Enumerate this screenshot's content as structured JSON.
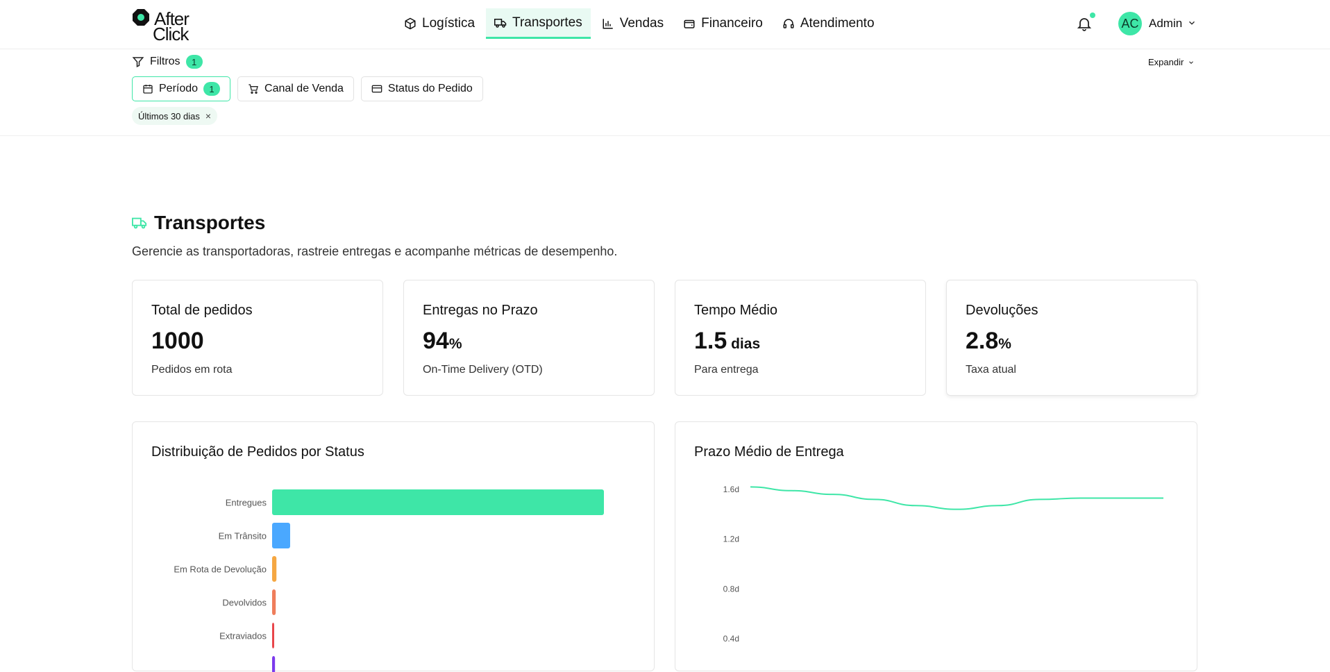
{
  "brand": {
    "line1": "After",
    "line2": "Click"
  },
  "nav": {
    "items": [
      {
        "label": "Logística",
        "icon": "package-icon",
        "active": false
      },
      {
        "label": "Transportes",
        "icon": "truck-icon",
        "active": true
      },
      {
        "label": "Vendas",
        "icon": "bar-chart-icon",
        "active": false
      },
      {
        "label": "Financeiro",
        "icon": "wallet-icon",
        "active": false
      },
      {
        "label": "Atendimento",
        "icon": "headset-icon",
        "active": false
      }
    ]
  },
  "user": {
    "initials": "AC",
    "name": "Admin"
  },
  "filters": {
    "label": "Filtros",
    "count": "1",
    "expand_label": "Expandir",
    "chips": [
      {
        "label": "Período",
        "icon": "calendar-icon",
        "badge": "1",
        "active": true
      },
      {
        "label": "Canal de Venda",
        "icon": "cart-icon",
        "badge": "",
        "active": false
      },
      {
        "label": "Status do Pedido",
        "icon": "credit-card-icon",
        "badge": "",
        "active": false
      }
    ],
    "active_pill": "Últimos 30 dias",
    "pill_close": "×"
  },
  "page": {
    "title": "Transportes",
    "subtitle": "Gerencie as transportadoras, rastreie entregas e acompanhe métricas de desempenho."
  },
  "kpis": [
    {
      "title": "Total de pedidos",
      "value": "1000",
      "unit": "",
      "sub": "Pedidos em rota"
    },
    {
      "title": "Entregas no Prazo",
      "value": "94",
      "unit": "%",
      "sub": "On-Time Delivery (OTD)"
    },
    {
      "title": "Tempo Médio",
      "value": "1.5",
      "unit": " dias",
      "sub": "Para entrega"
    },
    {
      "title": "Devoluções",
      "value": "2.8",
      "unit": "%",
      "sub": "Taxa atual"
    }
  ],
  "colors": {
    "accent": "#3ee6a7"
  },
  "status_chart": {
    "title": "Distribuição de Pedidos por Status",
    "chart_data": {
      "type": "bar",
      "orientation": "horizontal",
      "categories": [
        "Entregues",
        "Em Trânsito",
        "Em Rota de Devolução",
        "Devolvidos",
        "Extraviados",
        ""
      ],
      "values": [
        920,
        50,
        12,
        10,
        3,
        8
      ],
      "colors": [
        "#3ee6a7",
        "#4aa8ff",
        "#f5a742",
        "#ef7d5b",
        "#e8454a",
        "#7c3aed"
      ],
      "xlim": [
        0,
        920
      ]
    }
  },
  "delivery_chart": {
    "title": "Prazo Médio de Entrega",
    "chart_data": {
      "type": "line",
      "y_ticks": [
        "1.6d",
        "1.2d",
        "0.8d",
        "0.4d"
      ],
      "ylim": [
        0.4,
        1.6
      ],
      "values": [
        1.62,
        1.59,
        1.56,
        1.52,
        1.47,
        1.44,
        1.47,
        1.52,
        1.53,
        1.53,
        1.53
      ],
      "color": "#3ee6a7"
    }
  }
}
